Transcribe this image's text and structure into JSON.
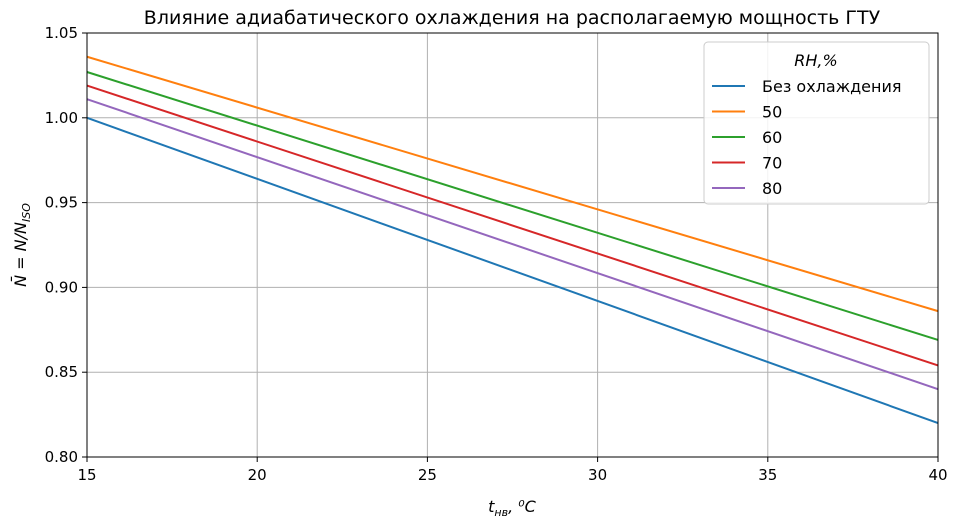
{
  "chart_data": {
    "type": "line",
    "title": "Влияние адиабатического охлаждения на располагаемую мощность ГТУ",
    "xlabel": {
      "main": "t",
      "sub": "нв",
      "unit": ", ⁰C"
    },
    "ylabel": {
      "main": "N̄ = N/N",
      "sub": "ISO"
    },
    "xlim": [
      15,
      40
    ],
    "ylim": [
      0.8,
      1.05
    ],
    "xticks": [
      "15",
      "20",
      "25",
      "30",
      "35",
      "40"
    ],
    "yticks": [
      "0.80",
      "0.85",
      "0.90",
      "0.95",
      "1.00",
      "1.05"
    ],
    "grid": true,
    "legend": {
      "title": "RH,%",
      "position": "top-right"
    },
    "x": [
      15,
      40
    ],
    "series": [
      {
        "name": "Без охлаждения",
        "color": "#1f77b4",
        "values": [
          1.0,
          0.82
        ]
      },
      {
        "name": "50",
        "color": "#ff7f0e",
        "values": [
          1.036,
          0.886
        ]
      },
      {
        "name": "60",
        "color": "#2ca02c",
        "values": [
          1.027,
          0.869
        ]
      },
      {
        "name": "70",
        "color": "#d62728",
        "values": [
          1.019,
          0.854
        ]
      },
      {
        "name": "80",
        "color": "#9467bd",
        "values": [
          1.011,
          0.84
        ]
      }
    ]
  }
}
